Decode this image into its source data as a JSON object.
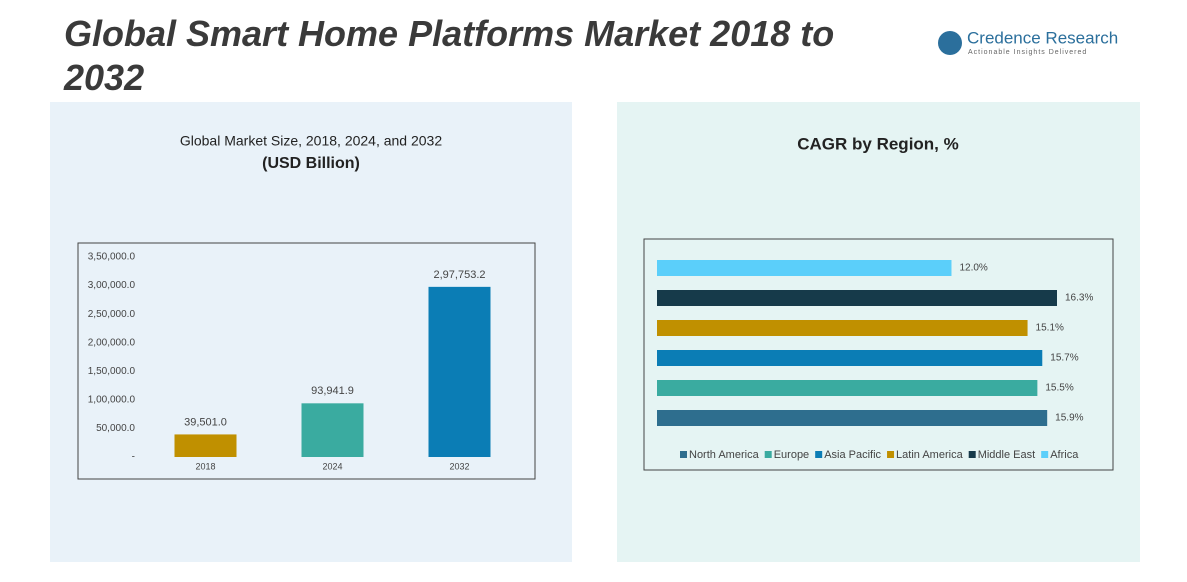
{
  "title": "Global Smart Home Platforms Market 2018 to 2032",
  "logo": {
    "name": "Credence Research",
    "tagline": "Actionable Insights Delivered"
  },
  "chart_data": [
    {
      "type": "bar",
      "title": "Global Market Size, 2018, 2024, and 2032",
      "subtitle": "(USD Billion)",
      "categories": [
        "2018",
        "2024",
        "2032"
      ],
      "values": [
        39501.0,
        93941.9,
        297753.2
      ],
      "value_labels": [
        "39,501.0",
        "93,941.9",
        "2,97,753.2"
      ],
      "colors": [
        "#c09000",
        "#3aaba0",
        "#0b7db5"
      ],
      "ylim": [
        0,
        350000
      ],
      "yticks": [
        {
          "value": 0,
          "label": "-"
        },
        {
          "value": 50000,
          "label": "50,000.0"
        },
        {
          "value": 100000,
          "label": "1,00,000.0"
        },
        {
          "value": 150000,
          "label": "1,50,000.0"
        },
        {
          "value": 200000,
          "label": "2,00,000.0"
        },
        {
          "value": 250000,
          "label": "2,50,000.0"
        },
        {
          "value": 300000,
          "label": "3,00,000.0"
        },
        {
          "value": 350000,
          "label": "3,50,000.0"
        }
      ]
    },
    {
      "type": "hbar",
      "title": "CAGR by Region, %",
      "categories": [
        "North America",
        "Europe",
        "Asia Pacific",
        "Latin America",
        "Middle East",
        "Africa"
      ],
      "values": [
        15.9,
        15.5,
        15.7,
        15.1,
        16.3,
        12.0
      ],
      "value_labels": [
        "15.9%",
        "15.5%",
        "15.7%",
        "15.1%",
        "16.3%",
        "12.0%"
      ],
      "colors": [
        "#2e6e8e",
        "#3aaba0",
        "#0b7db5",
        "#c09000",
        "#163a4a",
        "#5bcffa"
      ],
      "legend": "bottom"
    }
  ]
}
